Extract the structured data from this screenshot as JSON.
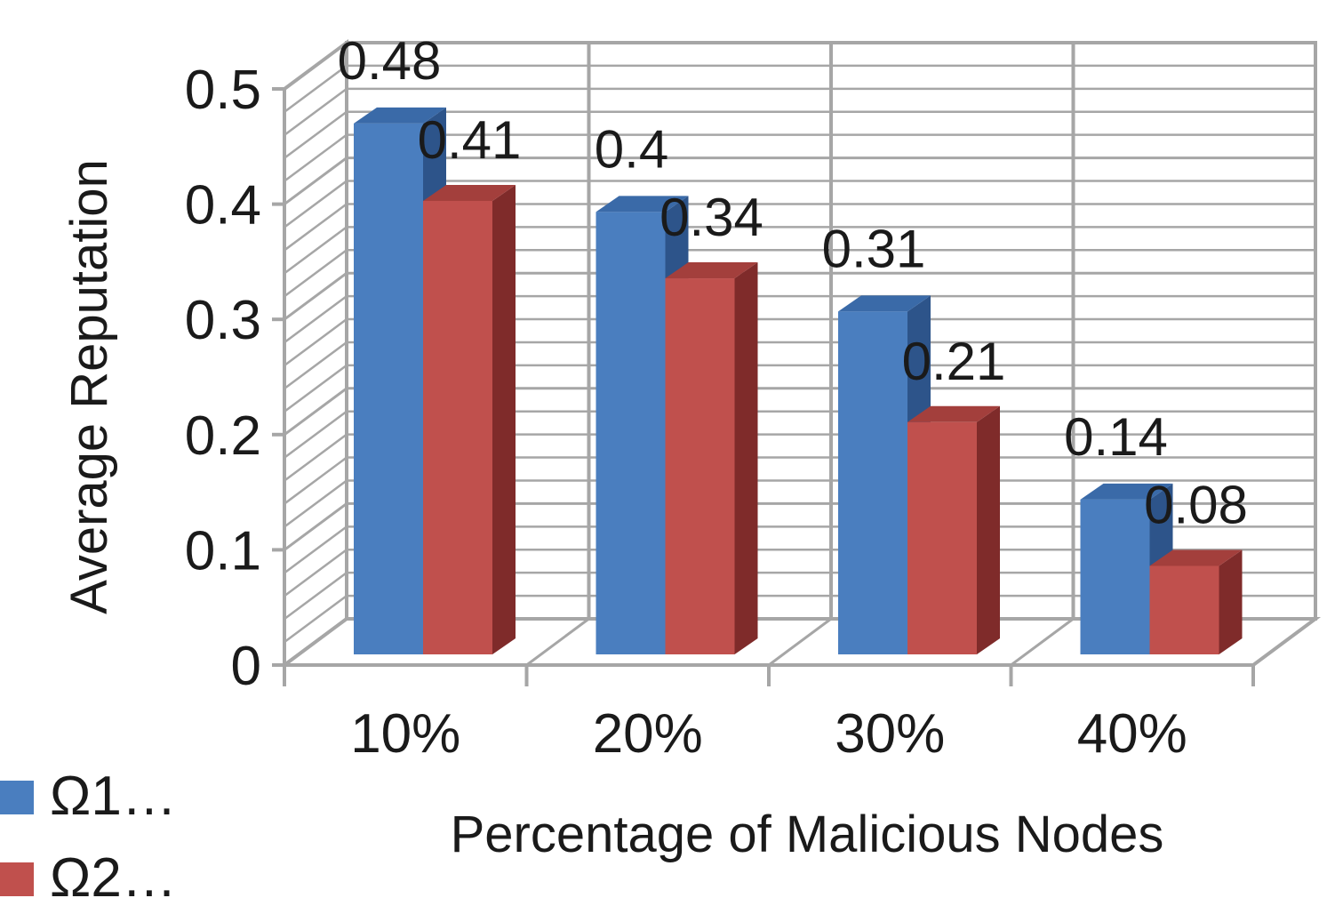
{
  "chart_data": {
    "type": "bar",
    "title": "",
    "xlabel": "Percentage of Malicious Nodes",
    "ylabel": "Average Reputation",
    "categories": [
      "10%",
      "20%",
      "30%",
      "40%"
    ],
    "series": [
      {
        "name": "Ω1…",
        "values": [
          0.48,
          0.4,
          0.31,
          0.14
        ],
        "color": "#4a7ebf",
        "top_color": "#3a6aa8",
        "side_color": "#2d548a"
      },
      {
        "name": "Ω2…",
        "values": [
          0.41,
          0.34,
          0.21,
          0.08
        ],
        "color": "#c0504d",
        "top_color": "#a33f3c",
        "side_color": "#7f2b2a"
      }
    ],
    "ylim": [
      0,
      0.5
    ],
    "yticks": [
      "0",
      "0.1",
      "0.2",
      "0.3",
      "0.4",
      "0.5"
    ],
    "ytick_values": [
      0,
      0.1,
      0.2,
      0.3,
      0.4,
      0.5
    ],
    "data_labels": [
      [
        "0.48",
        "0.4",
        "0.31",
        "0.14"
      ],
      [
        "0.41",
        "0.34",
        "0.21",
        "0.08"
      ]
    ],
    "grid": true,
    "three_d": true,
    "legend_position": "bottom-left"
  }
}
